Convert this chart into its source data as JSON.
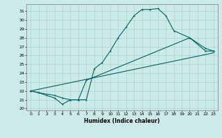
{
  "title": "",
  "xlabel": "Humidex (Indice chaleur)",
  "bg_color": "#cceae8",
  "grid_color": "#aad4d0",
  "line_color": "#006060",
  "xlim": [
    -0.5,
    23.5
  ],
  "ylim": [
    19.8,
    31.8
  ],
  "yticks": [
    20,
    21,
    22,
    23,
    24,
    25,
    26,
    27,
    28,
    29,
    30,
    31
  ],
  "xticks": [
    0,
    1,
    2,
    3,
    4,
    5,
    6,
    7,
    8,
    9,
    10,
    11,
    12,
    13,
    14,
    15,
    16,
    17,
    18,
    19,
    20,
    21,
    22,
    23
  ],
  "curve1_x": [
    0,
    1,
    2,
    3,
    4,
    5,
    6,
    7,
    8,
    9,
    10,
    11,
    12,
    13,
    14,
    15,
    16,
    17,
    18,
    20,
    22,
    23
  ],
  "curve1_y": [
    22.0,
    21.8,
    21.5,
    21.2,
    20.5,
    21.0,
    21.0,
    21.0,
    24.5,
    25.2,
    26.5,
    28.0,
    29.2,
    30.5,
    31.2,
    31.2,
    31.3,
    30.5,
    28.8,
    28.0,
    26.5,
    26.5
  ],
  "curve2_x": [
    0,
    1,
    3,
    4,
    5,
    6,
    7,
    20,
    22,
    23
  ],
  "curve2_y": [
    22.0,
    21.8,
    21.5,
    21.2,
    21.0,
    21.0,
    23.2,
    28.0,
    26.8,
    26.5
  ],
  "line3_x": [
    0,
    23
  ],
  "line3_y": [
    22.0,
    26.3
  ],
  "xlabel_fontsize": 5.5,
  "tick_fontsize": 4.5
}
